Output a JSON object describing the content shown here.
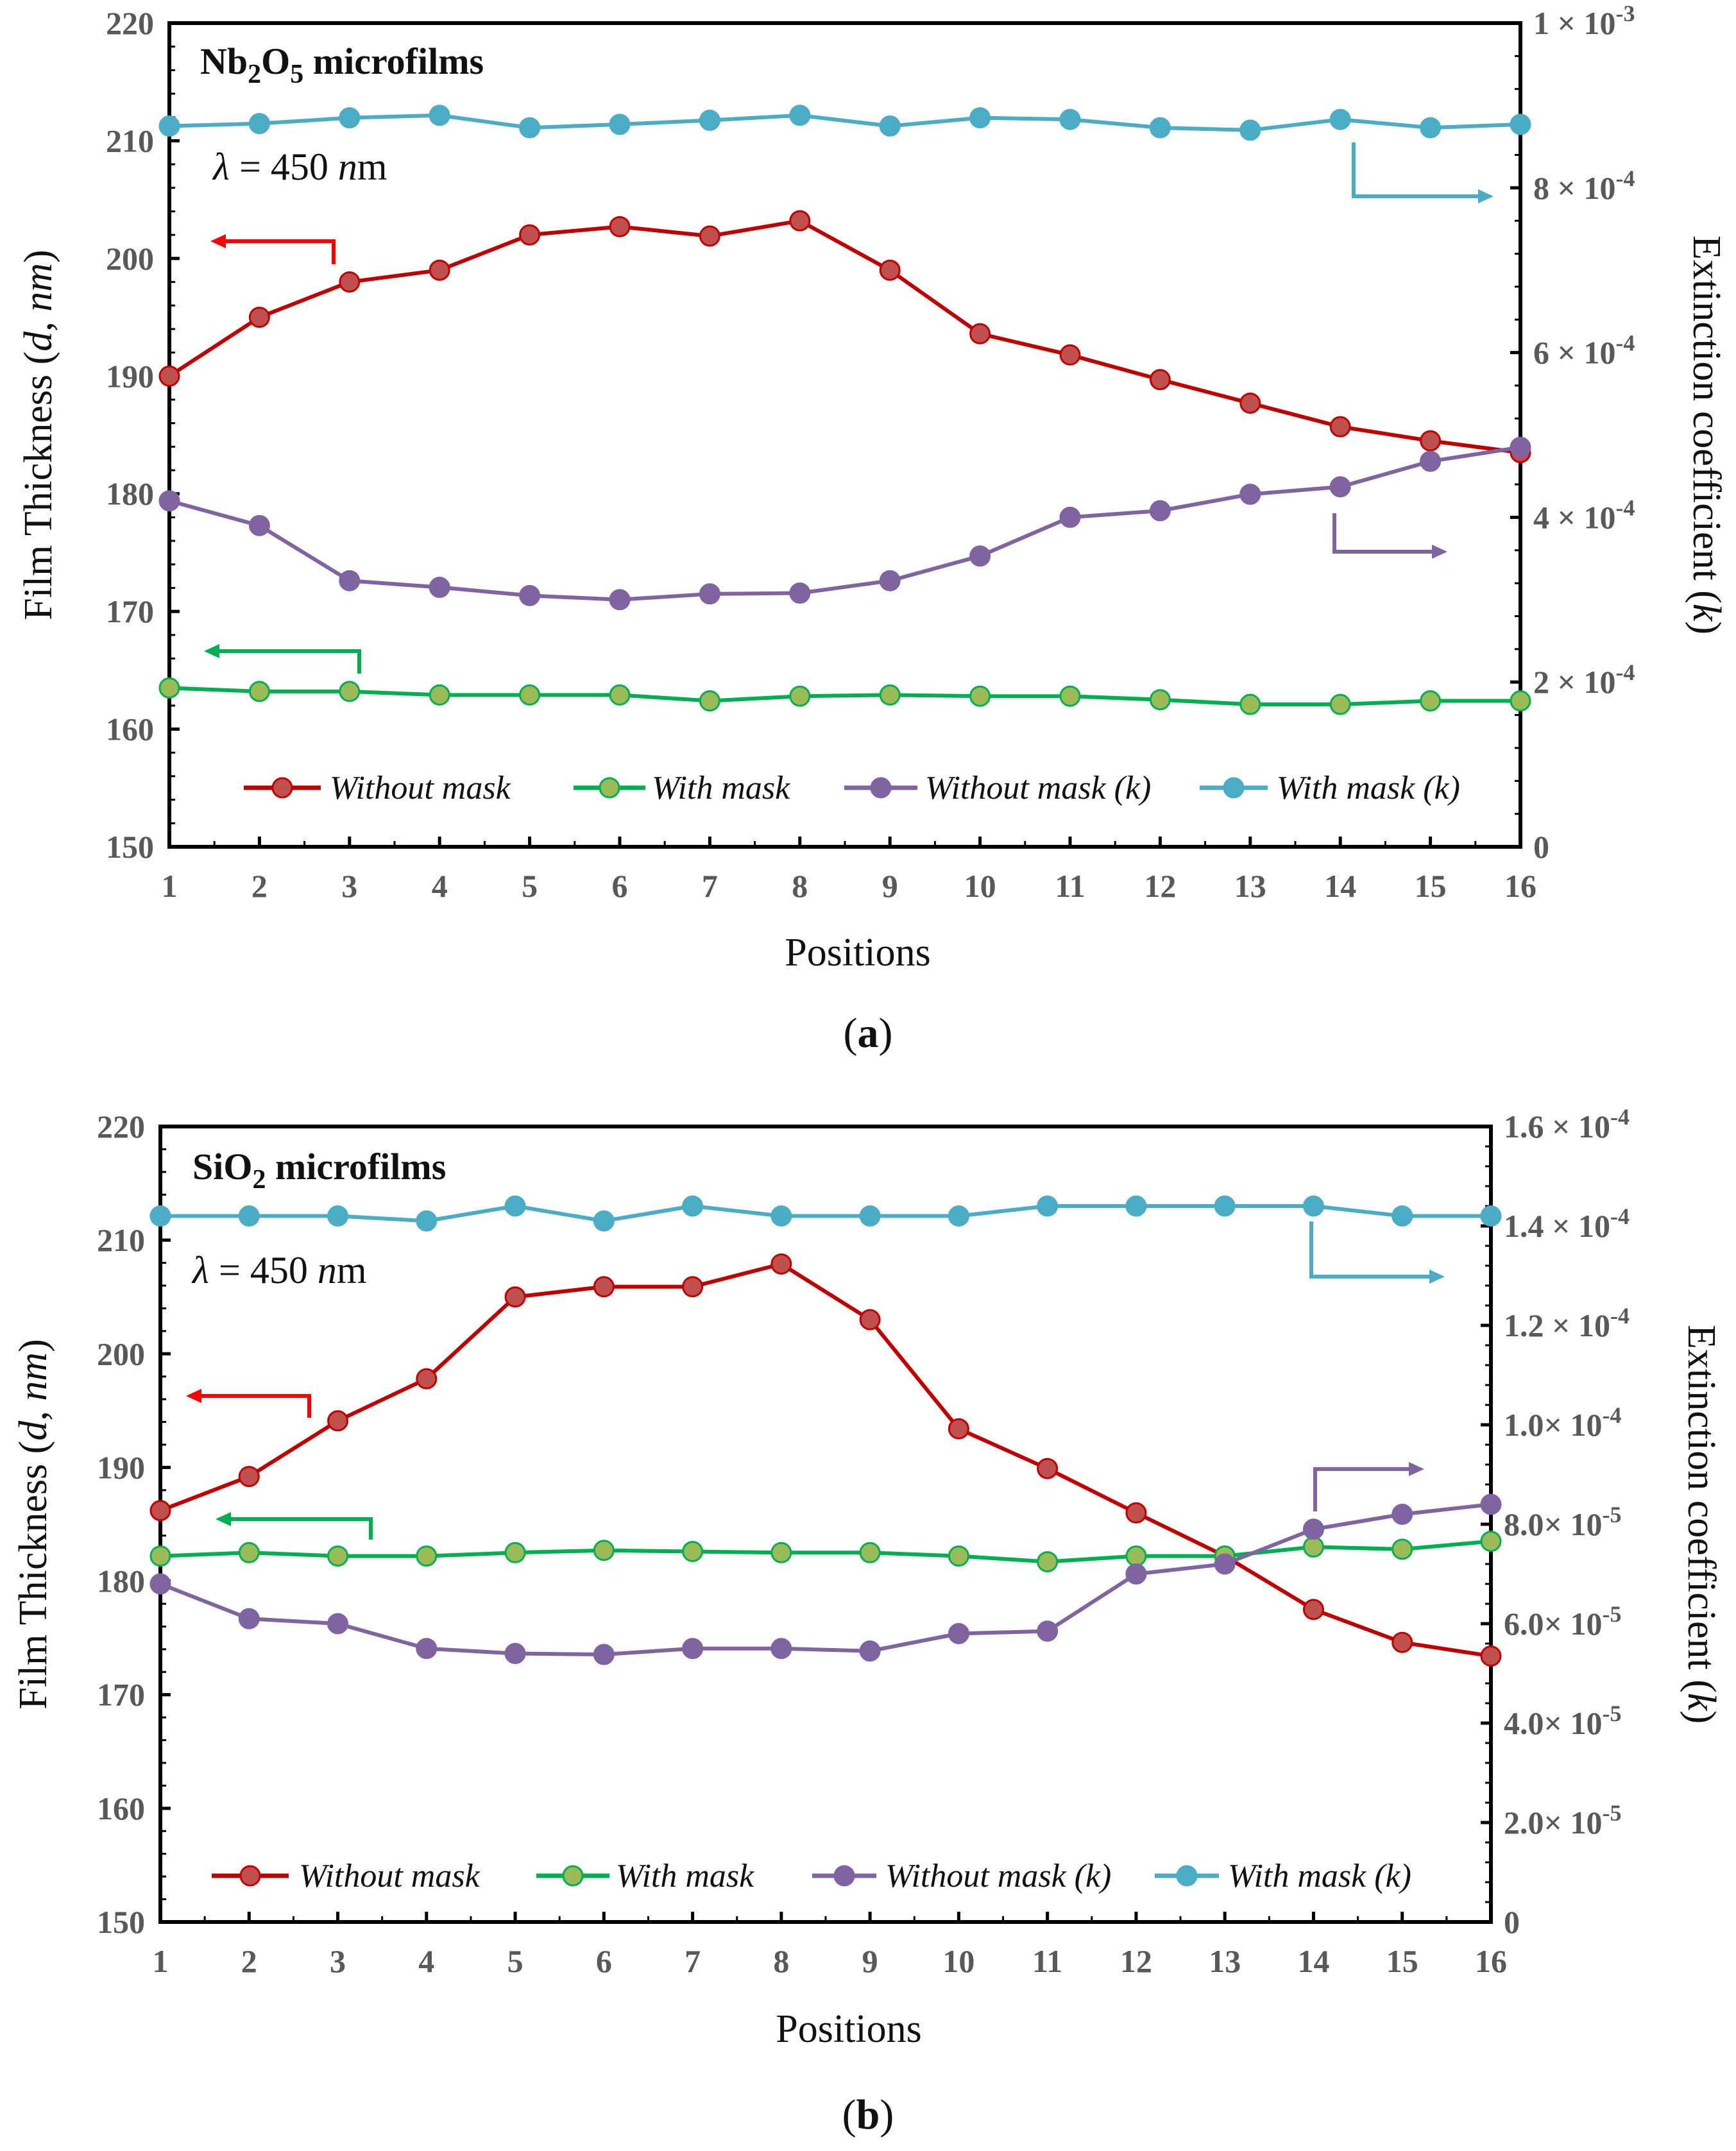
{
  "chart_data": [
    {
      "type": "line",
      "panel_label": "a",
      "title_prefix": "Nb",
      "title_sub1": "2",
      "title_mid": "O",
      "title_sub2": "5",
      "title_suffix": " microfilms",
      "lambda_symbol": "λ",
      "lambda_value": " = 450 ",
      "lambda_unit_n": "n",
      "lambda_unit_m": "m",
      "xlabel": "Positions",
      "ylabel_left": {
        "before": "Film Thickness (",
        "d": "d",
        "after": ", ",
        "nm": "nm",
        "close": ")"
      },
      "ylabel_right": {
        "before": "Extinction coefficient (",
        "k": "k",
        "close": ")"
      },
      "x": [
        1,
        2,
        3,
        4,
        5,
        6,
        7,
        8,
        9,
        10,
        11,
        12,
        13,
        14,
        15,
        16
      ],
      "x_ticks": [
        "1",
        "2",
        "3",
        "4",
        "5",
        "6",
        "7",
        "8",
        "9",
        "10",
        "11",
        "12",
        "13",
        "14",
        "15",
        "16"
      ],
      "ylim_left": [
        150,
        220
      ],
      "left_ticks": [
        "150",
        "160",
        "170",
        "180",
        "190",
        "200",
        "210",
        "220"
      ],
      "ylim_right": [
        0,
        0.001
      ],
      "right_ticks": [
        {
          "value": 0,
          "mant": "0",
          "exp": ""
        },
        {
          "value": 0.0002,
          "mant": "2 × 10",
          "exp": "-4"
        },
        {
          "value": 0.0004,
          "mant": "4 × 10",
          "exp": "-4"
        },
        {
          "value": 0.0006,
          "mant": "6 × 10",
          "exp": "-4"
        },
        {
          "value": 0.0008,
          "mant": "8 × 10",
          "exp": "-4"
        },
        {
          "value": 0.001,
          "mant": "1 × 10",
          "exp": "-3"
        }
      ],
      "series": [
        {
          "name": "Without mask",
          "axis": "left",
          "line_color": "#c00000",
          "marker_color": "#c0504d",
          "values": [
            190.0,
            195.0,
            198.0,
            199.0,
            202.0,
            202.7,
            201.9,
            203.2,
            199.0,
            193.6,
            191.8,
            189.7,
            187.7,
            185.7,
            184.5,
            183.5
          ]
        },
        {
          "name": "With mask",
          "axis": "left",
          "line_color": "#00b050",
          "marker_color": "#9bbb59",
          "values": [
            163.5,
            163.2,
            163.2,
            162.9,
            162.9,
            162.9,
            162.4,
            162.8,
            162.9,
            162.8,
            162.8,
            162.5,
            162.1,
            162.1,
            162.4,
            162.4
          ]
        },
        {
          "name": "Without mask (k)",
          "axis": "right",
          "line_color": "#8064a2",
          "marker_color": "#8064a2",
          "values": [
            0.00042,
            0.00039,
            0.000323,
            0.000315,
            0.000305,
            0.0003,
            0.000307,
            0.000308,
            0.000323,
            0.000353,
            0.0004,
            0.000408,
            0.000428,
            0.000437,
            0.000468,
            0.000485
          ]
        },
        {
          "name": "With mask (k)",
          "axis": "right",
          "line_color": "#4bacc6",
          "marker_color": "#4bacc6",
          "values": [
            0.000875,
            0.000878,
            0.000885,
            0.000888,
            0.000873,
            0.000877,
            0.000882,
            0.000888,
            0.000875,
            0.000885,
            0.000883,
            0.000873,
            0.00087,
            0.000883,
            0.000873,
            0.000877
          ]
        }
      ]
    },
    {
      "type": "line",
      "panel_label": "b",
      "title_prefix": "SiO",
      "title_sub1": "2",
      "title_mid": "",
      "title_sub2": "",
      "title_suffix": " microfilms",
      "lambda_symbol": "λ",
      "lambda_value": " = 450 ",
      "lambda_unit_n": "n",
      "lambda_unit_m": "m",
      "xlabel": "Positions",
      "ylabel_left": {
        "before": "Film Thickness (",
        "d": "d",
        "after": ", ",
        "nm": "nm",
        "close": ")"
      },
      "ylabel_right": {
        "before": "Extinction coefficient (",
        "k": "k",
        "close": ")"
      },
      "x": [
        1,
        2,
        3,
        4,
        5,
        6,
        7,
        8,
        9,
        10,
        11,
        12,
        13,
        14,
        15,
        16
      ],
      "x_ticks": [
        "1",
        "2",
        "3",
        "4",
        "5",
        "6",
        "7",
        "8",
        "9",
        "10",
        "11",
        "12",
        "13",
        "14",
        "15",
        "16"
      ],
      "ylim_left": [
        150,
        220
      ],
      "left_ticks": [
        "150",
        "160",
        "170",
        "180",
        "190",
        "200",
        "210",
        "220"
      ],
      "ylim_right": [
        0,
        0.00016
      ],
      "right_ticks": [
        {
          "value": 0,
          "mant": "0",
          "exp": ""
        },
        {
          "value": 2e-05,
          "mant": "2.0× 10",
          "exp": "-5"
        },
        {
          "value": 4e-05,
          "mant": "4.0× 10",
          "exp": "-5"
        },
        {
          "value": 6e-05,
          "mant": "6.0× 10",
          "exp": "-5"
        },
        {
          "value": 8e-05,
          "mant": "8.0× 10",
          "exp": "-5"
        },
        {
          "value": 0.0001,
          "mant": "1.0× 10",
          "exp": "-4"
        },
        {
          "value": 0.00012,
          "mant": "1.2 × 10",
          "exp": "-4"
        },
        {
          "value": 0.00014,
          "mant": "1.4 × 10",
          "exp": "-4"
        },
        {
          "value": 0.00016,
          "mant": "1.6 × 10",
          "exp": "-4"
        }
      ],
      "series": [
        {
          "name": "Without mask",
          "axis": "left",
          "line_color": "#c00000",
          "marker_color": "#c0504d",
          "values": [
            186.2,
            189.2,
            194.1,
            197.8,
            205.0,
            205.9,
            205.9,
            207.9,
            203.0,
            193.4,
            189.9,
            186.0,
            182.2,
            177.5,
            174.6,
            173.4
          ]
        },
        {
          "name": "With mask",
          "axis": "left",
          "line_color": "#00b050",
          "marker_color": "#9bbb59",
          "values": [
            182.2,
            182.5,
            182.2,
            182.2,
            182.5,
            182.7,
            182.6,
            182.5,
            182.5,
            182.2,
            181.7,
            182.2,
            182.2,
            183.0,
            182.8,
            183.5
          ]
        },
        {
          "name": "Without mask (k)",
          "axis": "right",
          "line_color": "#8064a2",
          "marker_color": "#8064a2",
          "values": [
            6.8e-05,
            6.1e-05,
            6e-05,
            5.5e-05,
            5.4e-05,
            5.38e-05,
            5.5e-05,
            5.5e-05,
            5.45e-05,
            5.8e-05,
            5.85e-05,
            7e-05,
            7.2e-05,
            7.9e-05,
            8.2e-05,
            8.4e-05
          ]
        },
        {
          "name": "With mask (k)",
          "axis": "right",
          "line_color": "#4bacc6",
          "marker_color": "#4bacc6",
          "values": [
            0.000142,
            0.000142,
            0.000142,
            0.000141,
            0.000144,
            0.000141,
            0.000144,
            0.000142,
            0.000142,
            0.000142,
            0.000144,
            0.000144,
            0.000144,
            0.000144,
            0.000142,
            0.000142
          ]
        }
      ]
    }
  ]
}
